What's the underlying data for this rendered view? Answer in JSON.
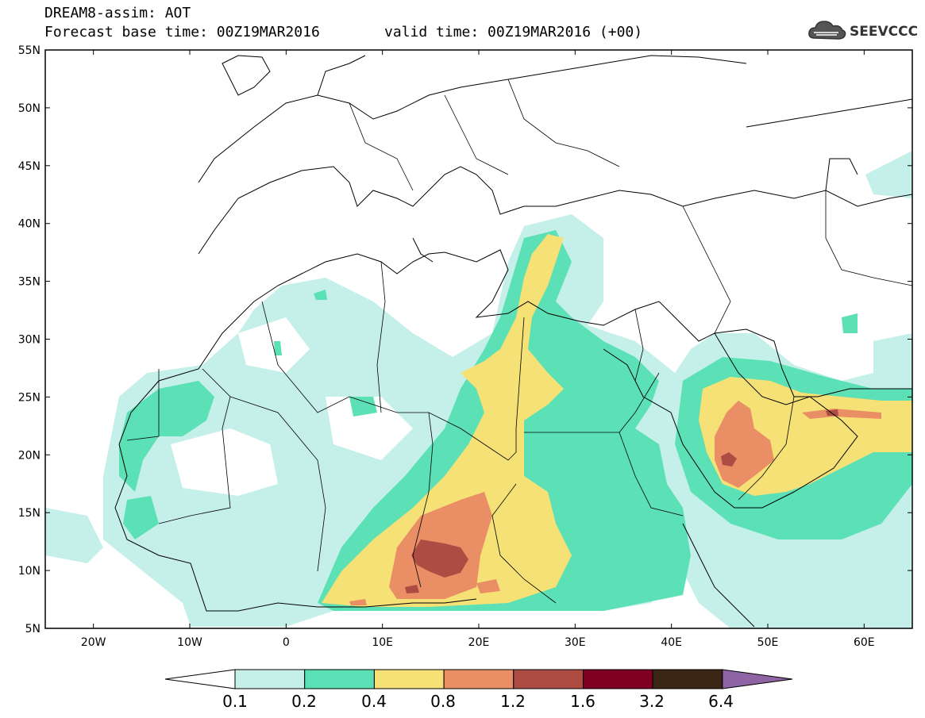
{
  "header": {
    "title": "DREAM8-assim: AOT",
    "base_time": "Forecast base time: 00Z19MAR2016",
    "valid_time": "valid time: 00Z19MAR2016 (+00)",
    "logo_text": "SEEVCCC"
  },
  "map": {
    "lat_labels": [
      "55N",
      "50N",
      "45N",
      "40N",
      "35N",
      "30N",
      "25N",
      "20N",
      "15N",
      "10N",
      "5N"
    ],
    "lon_labels": [
      "20W",
      "10W",
      "0",
      "10E",
      "20E",
      "30E",
      "40E",
      "50E",
      "60E"
    ],
    "lon_range": [
      -25,
      65
    ],
    "lat_range": [
      5,
      55
    ]
  },
  "legend": {
    "levels": [
      "0.1",
      "0.2",
      "0.4",
      "0.8",
      "1.2",
      "1.6",
      "3.2",
      "6.4"
    ],
    "colors": [
      "#c5f0ea",
      "#5ce0b6",
      "#f5e176",
      "#e98e65",
      "#ad4c42",
      "#800022",
      "#3b2616",
      "#8e64a5"
    ]
  }
}
